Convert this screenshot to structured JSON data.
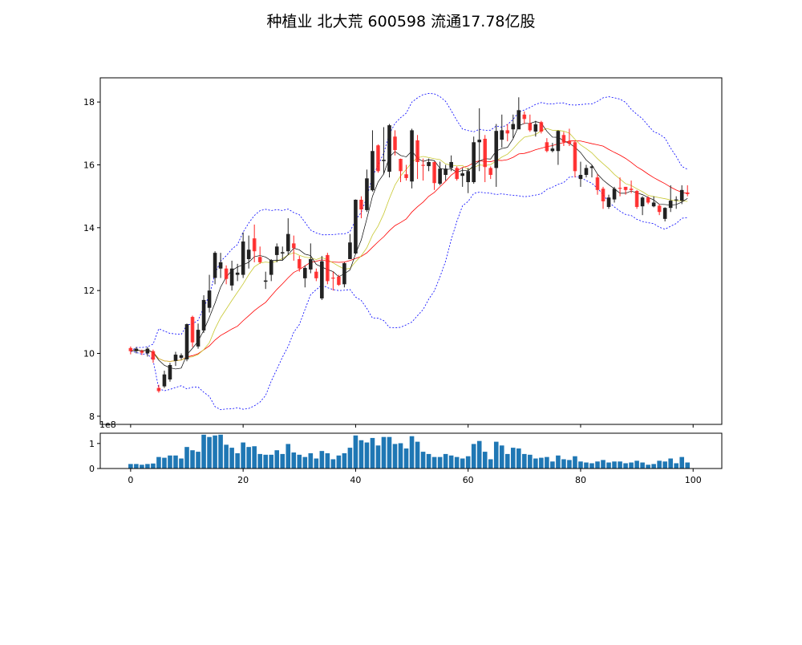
{
  "chart_data": {
    "type": "candlestick",
    "title": "种植业 北大荒 600598 流通17.78亿股",
    "xlim": [
      -5.4,
      105.1
    ],
    "ylim": [
      7.74,
      18.77
    ],
    "yticks": [
      8,
      10,
      12,
      14,
      16,
      18
    ],
    "xticks": [
      0,
      20,
      40,
      60,
      80,
      100
    ],
    "volume_ylim": [
      0,
      1.41
    ],
    "volume_yticks": [
      0,
      1
    ],
    "volume_offset_label": "1e8",
    "colors": {
      "up": "#222222",
      "down": "#ff2020",
      "ma5": "#000000",
      "ma10": "#c8c832",
      "ma20": "#ff0000",
      "boll": "#0000ff",
      "volume": "#1f77b4"
    },
    "ma_periods": [
      5,
      10,
      20
    ],
    "boll_period": 20,
    "ohlc": [
      [
        10.17,
        10.22,
        9.97,
        10.07
      ],
      [
        10.07,
        10.2,
        10.0,
        10.15
      ],
      [
        10.07,
        10.12,
        9.95,
        10.02
      ],
      [
        10.0,
        10.2,
        9.9,
        10.15
      ],
      [
        10.07,
        10.12,
        9.7,
        9.8
      ],
      [
        8.9,
        9.0,
        8.75,
        8.8
      ],
      [
        8.95,
        9.45,
        8.9,
        9.33
      ],
      [
        9.17,
        9.7,
        9.1,
        9.63
      ],
      [
        9.76,
        10.05,
        9.6,
        9.96
      ],
      [
        9.86,
        10.0,
        9.8,
        9.94
      ],
      [
        9.81,
        10.95,
        9.75,
        10.93
      ],
      [
        11.16,
        11.2,
        10.2,
        10.35
      ],
      [
        10.22,
        10.95,
        10.15,
        10.75
      ],
      [
        10.73,
        11.85,
        10.65,
        11.7
      ],
      [
        11.45,
        12.5,
        11.3,
        12.0
      ],
      [
        12.4,
        13.25,
        12.2,
        13.2
      ],
      [
        12.7,
        13.2,
        12.4,
        12.9
      ],
      [
        12.7,
        12.8,
        12.2,
        12.37
      ],
      [
        12.16,
        12.95,
        12.0,
        12.7
      ],
      [
        12.5,
        12.85,
        12.3,
        12.57
      ],
      [
        12.5,
        13.85,
        12.4,
        13.56
      ],
      [
        13.0,
        13.75,
        12.7,
        13.3
      ],
      [
        13.66,
        14.1,
        12.9,
        13.25
      ],
      [
        13.07,
        13.4,
        12.85,
        12.9
      ],
      [
        12.28,
        12.6,
        12.05,
        12.32
      ],
      [
        12.5,
        13.0,
        12.3,
        12.97
      ],
      [
        13.13,
        13.5,
        12.9,
        13.4
      ],
      [
        13.18,
        13.4,
        12.95,
        13.22
      ],
      [
        13.25,
        14.3,
        13.15,
        13.8
      ],
      [
        13.5,
        13.75,
        12.95,
        13.35
      ],
      [
        13.0,
        13.1,
        12.6,
        12.7
      ],
      [
        12.39,
        12.8,
        12.1,
        12.72
      ],
      [
        12.67,
        13.5,
        12.55,
        13.0
      ],
      [
        12.6,
        12.7,
        12.3,
        12.39
      ],
      [
        11.75,
        13.1,
        11.7,
        12.93
      ],
      [
        13.13,
        13.2,
        12.2,
        12.3
      ],
      [
        12.41,
        12.6,
        12.0,
        12.39
      ],
      [
        12.44,
        12.5,
        12.15,
        12.18
      ],
      [
        12.2,
        12.9,
        12.1,
        12.87
      ],
      [
        13.0,
        13.8,
        13.0,
        13.53
      ],
      [
        13.18,
        14.9,
        13.15,
        14.89
      ],
      [
        14.89,
        15.0,
        14.3,
        14.58
      ],
      [
        14.56,
        15.85,
        14.5,
        15.57
      ],
      [
        15.19,
        17.1,
        15.15,
        16.44
      ],
      [
        16.62,
        16.65,
        15.75,
        15.8
      ],
      [
        16.12,
        17.2,
        15.7,
        16.16
      ],
      [
        15.78,
        17.3,
        15.6,
        17.26
      ],
      [
        16.9,
        17.1,
        16.3,
        16.47
      ],
      [
        16.19,
        16.2,
        15.45,
        15.8
      ],
      [
        15.7,
        16.0,
        15.5,
        15.58
      ],
      [
        15.47,
        17.15,
        15.25,
        17.1
      ],
      [
        16.78,
        16.95,
        15.55,
        16.09
      ],
      [
        16.0,
        16.2,
        15.5,
        15.97
      ],
      [
        15.96,
        16.2,
        15.8,
        16.09
      ],
      [
        16.09,
        16.1,
        15.2,
        15.42
      ],
      [
        15.4,
        16.1,
        15.35,
        15.88
      ],
      [
        15.68,
        16.0,
        15.5,
        15.88
      ],
      [
        15.9,
        16.3,
        15.8,
        16.09
      ],
      [
        15.9,
        15.95,
        15.5,
        15.55
      ],
      [
        15.65,
        15.9,
        15.3,
        15.73
      ],
      [
        15.45,
        15.9,
        15.1,
        15.8
      ],
      [
        15.45,
        16.9,
        15.4,
        16.72
      ],
      [
        16.72,
        17.8,
        15.8,
        16.8
      ],
      [
        16.83,
        16.95,
        15.45,
        15.93
      ],
      [
        15.9,
        15.95,
        15.55,
        15.68
      ],
      [
        15.9,
        17.3,
        15.3,
        17.08
      ],
      [
        16.8,
        17.6,
        16.55,
        17.1
      ],
      [
        17.1,
        17.3,
        16.75,
        17.0
      ],
      [
        17.13,
        17.6,
        16.85,
        17.3
      ],
      [
        17.13,
        18.15,
        17.15,
        17.74
      ],
      [
        17.6,
        17.7,
        17.3,
        17.46
      ],
      [
        17.33,
        17.6,
        17.05,
        17.1
      ],
      [
        17.06,
        17.4,
        16.9,
        17.29
      ],
      [
        17.36,
        17.4,
        17.0,
        17.06
      ],
      [
        16.72,
        16.85,
        16.4,
        16.44
      ],
      [
        16.44,
        16.7,
        16.4,
        16.52
      ],
      [
        16.44,
        17.1,
        16.0,
        17.08
      ],
      [
        16.95,
        17.05,
        16.6,
        16.72
      ],
      [
        16.75,
        17.15,
        16.6,
        16.67
      ],
      [
        16.72,
        16.75,
        15.6,
        15.8
      ],
      [
        15.55,
        16.1,
        15.3,
        15.68
      ],
      [
        15.68,
        16.0,
        15.6,
        15.9
      ],
      [
        15.9,
        16.0,
        15.6,
        15.95
      ],
      [
        15.6,
        15.7,
        15.05,
        15.2
      ],
      [
        15.24,
        15.3,
        14.6,
        14.84
      ],
      [
        14.66,
        15.05,
        14.6,
        14.96
      ],
      [
        14.9,
        15.3,
        14.8,
        15.24
      ],
      [
        15.27,
        15.6,
        15.0,
        15.24
      ],
      [
        15.3,
        15.3,
        15.05,
        15.2
      ],
      [
        15.24,
        15.5,
        15.1,
        15.2
      ],
      [
        15.17,
        15.2,
        14.6,
        14.66
      ],
      [
        14.68,
        15.0,
        14.4,
        14.96
      ],
      [
        14.96,
        15.0,
        14.75,
        14.8
      ],
      [
        14.68,
        15.0,
        14.65,
        14.8
      ],
      [
        14.7,
        14.75,
        14.4,
        14.5
      ],
      [
        14.28,
        14.65,
        14.2,
        14.63
      ],
      [
        14.63,
        15.35,
        14.5,
        14.86
      ],
      [
        14.88,
        15.0,
        14.6,
        14.9
      ],
      [
        14.86,
        15.35,
        14.75,
        15.2
      ],
      [
        15.12,
        15.35,
        15.0,
        15.07
      ]
    ],
    "volume": [
      0.18,
      0.18,
      0.15,
      0.18,
      0.2,
      0.46,
      0.43,
      0.52,
      0.52,
      0.4,
      0.86,
      0.73,
      0.67,
      1.35,
      1.26,
      1.32,
      1.35,
      0.95,
      0.83,
      0.61,
      1.04,
      0.86,
      0.89,
      0.58,
      0.55,
      0.55,
      0.73,
      0.58,
      0.98,
      0.64,
      0.55,
      0.46,
      0.61,
      0.4,
      0.7,
      0.61,
      0.37,
      0.52,
      0.61,
      0.83,
      1.32,
      1.13,
      1.04,
      1.22,
      0.92,
      1.26,
      1.26,
      0.98,
      1.01,
      0.8,
      1.29,
      1.07,
      0.67,
      0.58,
      0.46,
      0.46,
      0.58,
      0.52,
      0.46,
      0.4,
      0.49,
      0.98,
      1.1,
      0.67,
      0.37,
      1.07,
      0.92,
      0.58,
      0.83,
      0.8,
      0.58,
      0.55,
      0.4,
      0.43,
      0.46,
      0.28,
      0.52,
      0.37,
      0.34,
      0.49,
      0.28,
      0.24,
      0.21,
      0.28,
      0.34,
      0.24,
      0.28,
      0.28,
      0.21,
      0.24,
      0.31,
      0.24,
      0.15,
      0.18,
      0.31,
      0.28,
      0.4,
      0.21,
      0.46,
      0.24
    ]
  }
}
